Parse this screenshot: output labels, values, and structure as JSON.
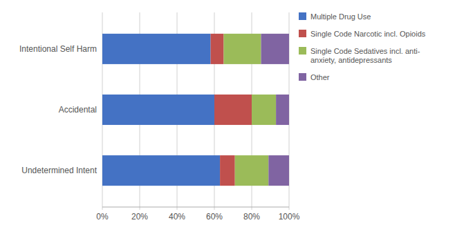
{
  "chart_data": {
    "type": "bar",
    "orientation": "horizontal",
    "stacked": true,
    "categories": [
      "Undetermined Intent",
      "Accidental",
      "Intentional Self Harm"
    ],
    "series": [
      {
        "name": "Multiple Drug Use",
        "color": "#4472C4",
        "values": [
          63,
          60,
          58
        ]
      },
      {
        "name": "Single Code Narcotic incl. Opioids",
        "color": "#C0504D",
        "values": [
          8,
          20,
          7
        ]
      },
      {
        "name": "Single Code Sedatives incl. anti-\nanxiety, antidepressants",
        "color": "#9BBB59",
        "values": [
          18,
          13,
          20
        ]
      },
      {
        "name": "Other",
        "color": "#8064A2",
        "values": [
          11,
          7,
          15
        ]
      }
    ],
    "xlim": [
      0,
      100
    ],
    "xticks": [
      {
        "value": 0,
        "label": "0%"
      },
      {
        "value": 20,
        "label": "20%"
      },
      {
        "value": 40,
        "label": "40%"
      },
      {
        "value": 60,
        "label": "60%"
      },
      {
        "value": 80,
        "label": "80%"
      },
      {
        "value": 100,
        "label": "100%"
      }
    ],
    "grid": true,
    "legend": "right"
  }
}
